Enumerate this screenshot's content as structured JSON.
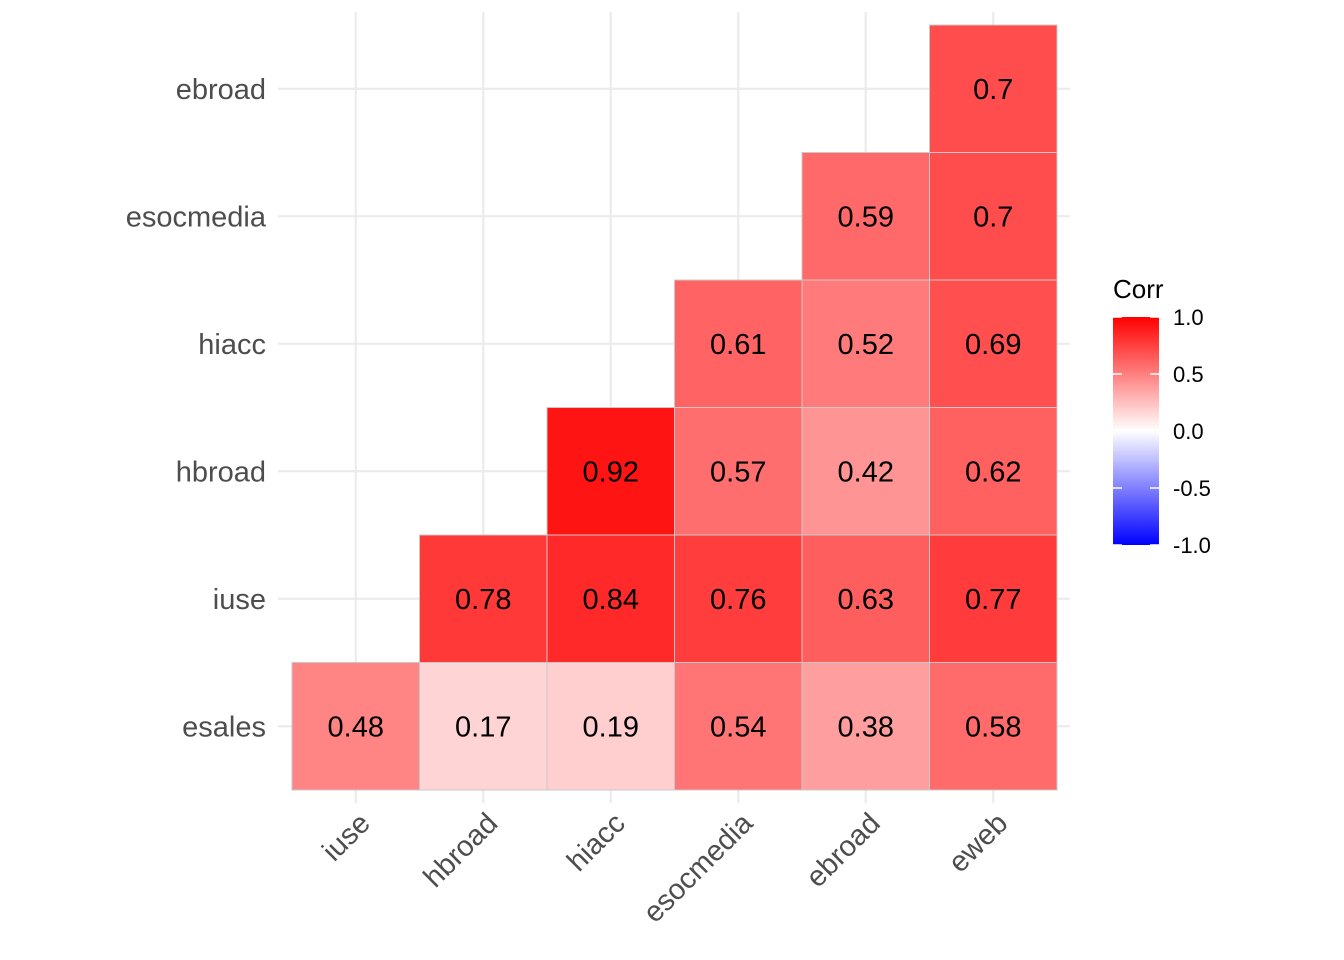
{
  "chart_data": {
    "type": "heatmap",
    "title": "",
    "xlabel": "",
    "ylabel": "",
    "x_categories": [
      "iuse",
      "hbroad",
      "hiacc",
      "esocmedia",
      "ebroad",
      "eweb"
    ],
    "y_categories": [
      "esales",
      "iuse",
      "hbroad",
      "hiacc",
      "esocmedia",
      "ebroad"
    ],
    "cells": [
      {
        "x": "iuse",
        "y": "esales",
        "value": 0.48,
        "label": "0.48"
      },
      {
        "x": "hbroad",
        "y": "esales",
        "value": 0.17,
        "label": "0.17"
      },
      {
        "x": "hiacc",
        "y": "esales",
        "value": 0.19,
        "label": "0.19"
      },
      {
        "x": "esocmedia",
        "y": "esales",
        "value": 0.54,
        "label": "0.54"
      },
      {
        "x": "ebroad",
        "y": "esales",
        "value": 0.38,
        "label": "0.38"
      },
      {
        "x": "eweb",
        "y": "esales",
        "value": 0.58,
        "label": "0.58"
      },
      {
        "x": "hbroad",
        "y": "iuse",
        "value": 0.78,
        "label": "0.78"
      },
      {
        "x": "hiacc",
        "y": "iuse",
        "value": 0.84,
        "label": "0.84"
      },
      {
        "x": "esocmedia",
        "y": "iuse",
        "value": 0.76,
        "label": "0.76"
      },
      {
        "x": "ebroad",
        "y": "iuse",
        "value": 0.63,
        "label": "0.63"
      },
      {
        "x": "eweb",
        "y": "iuse",
        "value": 0.77,
        "label": "0.77"
      },
      {
        "x": "hiacc",
        "y": "hbroad",
        "value": 0.92,
        "label": "0.92"
      },
      {
        "x": "esocmedia",
        "y": "hbroad",
        "value": 0.57,
        "label": "0.57"
      },
      {
        "x": "ebroad",
        "y": "hbroad",
        "value": 0.42,
        "label": "0.42"
      },
      {
        "x": "eweb",
        "y": "hbroad",
        "value": 0.62,
        "label": "0.62"
      },
      {
        "x": "esocmedia",
        "y": "hiacc",
        "value": 0.61,
        "label": "0.61"
      },
      {
        "x": "ebroad",
        "y": "hiacc",
        "value": 0.52,
        "label": "0.52"
      },
      {
        "x": "eweb",
        "y": "hiacc",
        "value": 0.69,
        "label": "0.69"
      },
      {
        "x": "ebroad",
        "y": "esocmedia",
        "value": 0.59,
        "label": "0.59"
      },
      {
        "x": "eweb",
        "y": "esocmedia",
        "value": 0.7,
        "label": "0.7"
      },
      {
        "x": "eweb",
        "y": "ebroad",
        "value": 0.7,
        "label": "0.7"
      }
    ],
    "legend": {
      "title": "Corr",
      "position": "right",
      "breaks": [
        1.0,
        0.5,
        0.0,
        -0.5,
        -1.0
      ],
      "break_labels": [
        "1.0",
        "0.5",
        "0.0",
        "-0.5",
        "-1.0"
      ],
      "range": [
        -1,
        1
      ]
    },
    "colors": {
      "low": "#0000ff",
      "mid": "#ffffff",
      "high": "#ff0000",
      "grid": "#ebebeb",
      "tile_border": "#c8c8c8"
    },
    "grid": true
  }
}
